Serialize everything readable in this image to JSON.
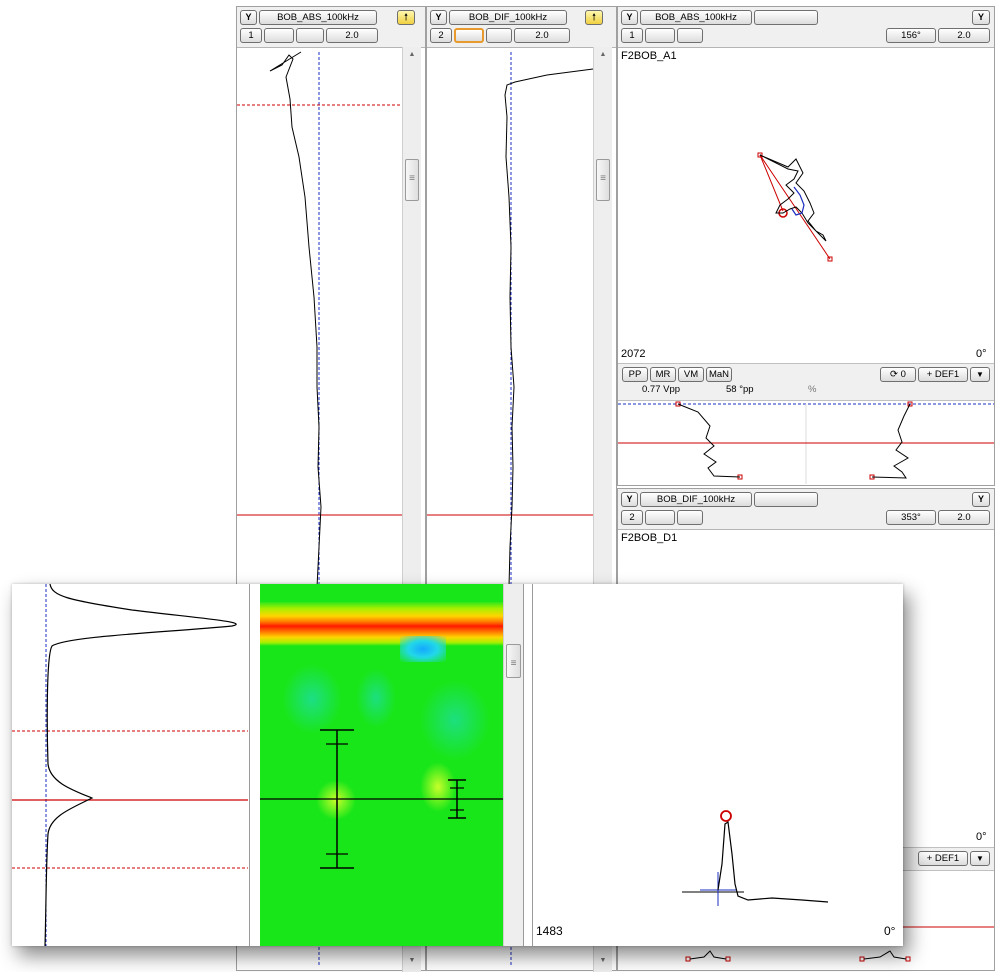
{
  "strip1": {
    "filter_icon": "Y",
    "channel_name": "BOB_ABS_100kHz",
    "nav_icon": "up-arrow-icon",
    "number": "1",
    "scale": "2.0"
  },
  "strip2": {
    "filter_icon": "Y",
    "channel_name": "BOB_DIF_100kHz",
    "nav_icon": "up-arrow-icon",
    "number": "2",
    "scale": "2.0"
  },
  "lissajous1": {
    "filter_icon": "Y",
    "channel_name": "BOB_ABS_100kHz",
    "filter_icon_right": "Y",
    "number": "1",
    "angle": "156°",
    "scale": "2.0",
    "title": "F2BOB_A1",
    "corner_left": "2072",
    "corner_right": "0°",
    "buttons": [
      "PP",
      "MR",
      "VM",
      "MaN"
    ],
    "rotate_value": "⟳ 0",
    "def_label": "+ DEF1",
    "dropdown_icon": "▼",
    "measure_vpp": "0.77 Vpp",
    "measure_phase": "58 °pp",
    "measure_percent": "%"
  },
  "lissajous2": {
    "filter_icon": "Y",
    "channel_name": "BOB_DIF_100kHz",
    "filter_icon_right": "Y",
    "number": "2",
    "angle": "353°",
    "scale": "2.0",
    "title": "F2BOB_D1",
    "corner_right": "0°",
    "def_label": "+ DEF1",
    "dropdown_icon": "▼"
  },
  "overlay": {
    "corner_left": "1483",
    "corner_right": "0°"
  },
  "colors": {
    "grid_red": "#cc0000",
    "cursor_blue": "#1b2cc0",
    "cscan_green": "#19e619",
    "cscan_red": "#ff1a00"
  }
}
